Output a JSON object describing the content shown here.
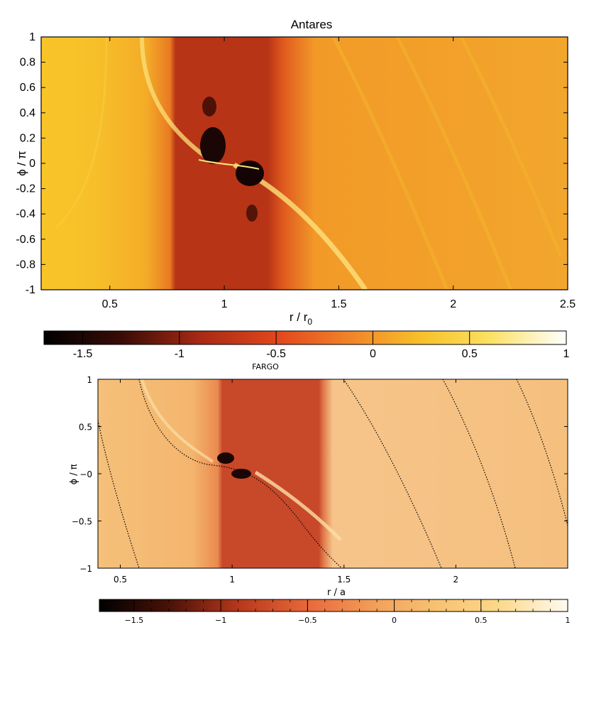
{
  "chart_data": [
    {
      "type": "heatmap",
      "title": "Antares",
      "xlabel": "r / r",
      "xlabel_sub": "0",
      "ylabel": "ϕ / π",
      "xlim": [
        0.2,
        2.5
      ],
      "ylim": [
        -1,
        1
      ],
      "xticks": [
        {
          "v": 0.5,
          "label": "0.5"
        },
        {
          "v": 1,
          "label": "1"
        },
        {
          "v": 1.5,
          "label": "1.5"
        },
        {
          "v": 2,
          "label": "2"
        },
        {
          "v": 2.5,
          "label": "2.5"
        }
      ],
      "yticks": [
        {
          "v": 1,
          "label": "1"
        },
        {
          "v": 0.8,
          "label": "0.8"
        },
        {
          "v": 0.6,
          "label": "0.6"
        },
        {
          "v": 0.4,
          "label": "0.4"
        },
        {
          "v": 0.2,
          "label": "0.2"
        },
        {
          "v": 0,
          "label": "0"
        },
        {
          "v": -0.2,
          "label": "-0.2"
        },
        {
          "v": -0.4,
          "label": "-0.4"
        },
        {
          "v": -0.6,
          "label": "-0.6"
        },
        {
          "v": -0.8,
          "label": "-0.8"
        },
        {
          "v": -1,
          "label": "-1"
        }
      ],
      "colorbar": {
        "min": -1.7,
        "max": 1,
        "ticks": [
          {
            "v": -1.5,
            "label": "-1.5"
          },
          {
            "v": -1,
            "label": "-1"
          },
          {
            "v": -0.5,
            "label": "-0.5"
          },
          {
            "v": 0,
            "label": "0"
          },
          {
            "v": 0.5,
            "label": "0.5"
          },
          {
            "v": 1,
            "label": "1"
          }
        ]
      }
    },
    {
      "type": "heatmap",
      "title": "FARGO",
      "xlabel": "r / a",
      "ylabel": "ϕ / π",
      "xlim": [
        0.4,
        2.5
      ],
      "ylim": [
        -1,
        1
      ],
      "xticks": [
        {
          "v": 0.5,
          "label": "0.5"
        },
        {
          "v": 1,
          "label": "1"
        },
        {
          "v": 1.5,
          "label": "1.5"
        },
        {
          "v": 2,
          "label": "2"
        }
      ],
      "yticks": [
        {
          "v": 1,
          "label": "1"
        },
        {
          "v": 0.5,
          "label": "0.5"
        },
        {
          "v": 0,
          "label": "−0"
        },
        {
          "v": -0.5,
          "label": "−0.5"
        },
        {
          "v": -1,
          "label": "−1"
        }
      ],
      "colorbar": {
        "min": -1.7,
        "max": 1,
        "ticks": [
          {
            "v": -1.5,
            "label": "−1.5"
          },
          {
            "v": -1,
            "label": "−1"
          },
          {
            "v": -0.5,
            "label": "−0.5"
          },
          {
            "v": 0,
            "label": "0"
          },
          {
            "v": 0.5,
            "label": "0.5"
          },
          {
            "v": 1,
            "label": "1"
          }
        ]
      }
    }
  ]
}
